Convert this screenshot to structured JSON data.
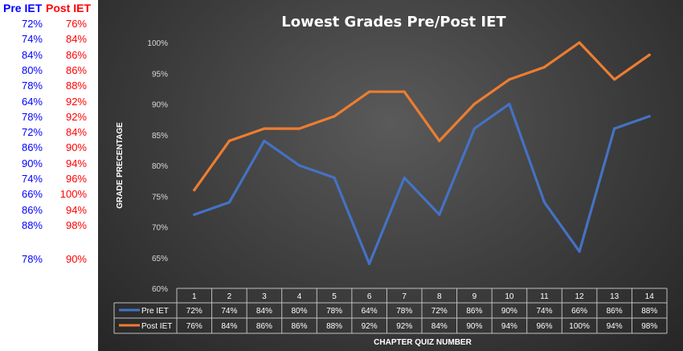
{
  "side_table": {
    "header_pre": "Pre IET",
    "header_post": "Post IET",
    "rows": [
      {
        "pre": "72%",
        "post": "76%"
      },
      {
        "pre": "74%",
        "post": "84%"
      },
      {
        "pre": "84%",
        "post": "86%"
      },
      {
        "pre": "80%",
        "post": "86%"
      },
      {
        "pre": "78%",
        "post": "88%"
      },
      {
        "pre": "64%",
        "post": "92%"
      },
      {
        "pre": "78%",
        "post": "92%"
      },
      {
        "pre": "72%",
        "post": "84%"
      },
      {
        "pre": "86%",
        "post": "90%"
      },
      {
        "pre": "90%",
        "post": "94%"
      },
      {
        "pre": "74%",
        "post": "96%"
      },
      {
        "pre": "66%",
        "post": "100%"
      },
      {
        "pre": "86%",
        "post": "94%"
      },
      {
        "pre": "88%",
        "post": "98%"
      }
    ],
    "average": {
      "pre": "78%",
      "post": "90%"
    },
    "pre_color": "#0000ff",
    "post_color": "#ff0000"
  },
  "chart_data": {
    "type": "line",
    "title": "Lowest Grades Pre/Post IET",
    "xlabel": "CHAPTER QUIZ NUMBER",
    "ylabel": "GRADE PRECENTAGE",
    "categories": [
      "1",
      "2",
      "3",
      "4",
      "5",
      "6",
      "7",
      "8",
      "9",
      "10",
      "11",
      "12",
      "13",
      "14"
    ],
    "ylim": [
      60,
      100
    ],
    "yticks": [
      "60%",
      "65%",
      "70%",
      "75%",
      "80%",
      "85%",
      "90%",
      "95%",
      "100%"
    ],
    "grid": false,
    "data_table": true,
    "series": [
      {
        "name": "Pre IET",
        "color": "#4472c4",
        "values": [
          72,
          74,
          84,
          80,
          78,
          64,
          78,
          72,
          86,
          90,
          74,
          66,
          86,
          88
        ],
        "labels": [
          "72%",
          "74%",
          "84%",
          "80%",
          "78%",
          "64%",
          "78%",
          "72%",
          "86%",
          "90%",
          "74%",
          "66%",
          "86%",
          "88%"
        ]
      },
      {
        "name": "Post IET",
        "color": "#ed7d31",
        "values": [
          76,
          84,
          86,
          86,
          88,
          92,
          92,
          84,
          90,
          94,
          96,
          100,
          94,
          98
        ],
        "labels": [
          "76%",
          "84%",
          "86%",
          "86%",
          "88%",
          "92%",
          "92%",
          "84%",
          "90%",
          "94%",
          "96%",
          "100%",
          "94%",
          "98%"
        ]
      }
    ]
  }
}
